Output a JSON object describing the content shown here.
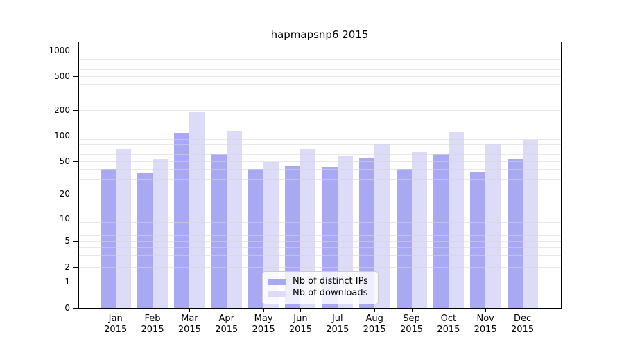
{
  "title": "hapmapsnp6 2015",
  "year_label": "2015",
  "colors": {
    "distinct_ips": "#a9a9f3",
    "downloads": "#dcdcf9",
    "background": "#ffffff",
    "grid_major": "#b0b0b0",
    "grid_minor": "#e6e6e6",
    "axis": "#000000",
    "legend_border": "#cccccc"
  },
  "legend": {
    "items": [
      {
        "label": "Nb of distinct IPs",
        "color": "#a9a9f3"
      },
      {
        "label": "Nb of downloads",
        "color": "#dcdcf9"
      }
    ]
  },
  "y_axis": {
    "tick_labels": [
      "0",
      "1",
      "2",
      "5",
      "10",
      "20",
      "50",
      "100",
      "200",
      "500",
      "1000"
    ]
  },
  "chart_data": {
    "type": "bar",
    "title": "hapmapsnp6 2015",
    "categories": [
      "Jan 2015",
      "Feb 2015",
      "Mar 2015",
      "Apr 2015",
      "May 2015",
      "Jun 2015",
      "Jul 2015",
      "Aug 2015",
      "Sep 2015",
      "Oct 2015",
      "Nov 2015",
      "Dec 2015"
    ],
    "months": [
      "Jan",
      "Feb",
      "Mar",
      "Apr",
      "May",
      "Jun",
      "Jul",
      "Aug",
      "Sep",
      "Oct",
      "Nov",
      "Dec"
    ],
    "series": [
      {
        "name": "Nb of distinct IPs",
        "values": [
          40,
          36,
          107,
          60,
          40,
          44,
          43,
          54,
          40,
          60,
          37,
          53
        ]
      },
      {
        "name": "Nb of downloads",
        "values": [
          70,
          53,
          188,
          114,
          49,
          68,
          57,
          79,
          64,
          110,
          79,
          89
        ]
      }
    ],
    "yscale": "log",
    "yticks": [
      0,
      1,
      2,
      5,
      10,
      20,
      50,
      100,
      200,
      500,
      1000
    ],
    "ylim": [
      0,
      1300
    ],
    "xlabel": "",
    "ylabel": "",
    "grid": true,
    "legend_position": "lower center"
  }
}
